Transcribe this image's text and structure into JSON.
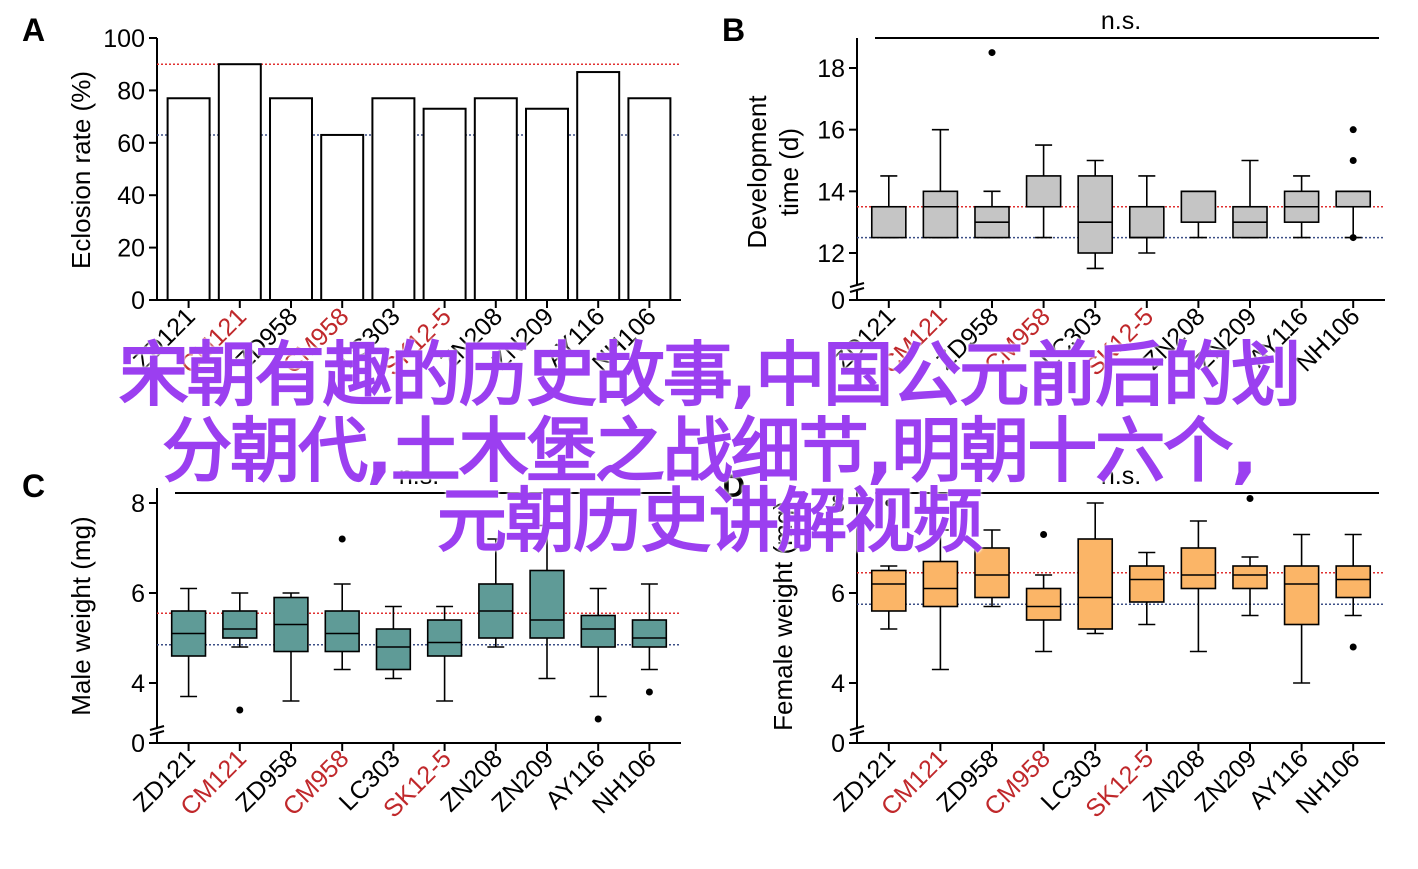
{
  "colors": {
    "control_red": "#c0282b",
    "ref_red": "#e03030",
    "ref_blue": "#3c4f86",
    "bar_fill": "#ffffff",
    "box_gray": "#c5c5c5",
    "box_teal": "#5f9b97",
    "box_orange": "#fbb567",
    "watermark": "#9b3ff0"
  },
  "watermark": {
    "line1": "宋朝有趣的历史故事,中国公元前后的划",
    "line2": "分朝代,土木堡之战细节,明朝十六个,",
    "line3": "元朝历史讲解视频"
  },
  "chart_data": [
    {
      "panel": "A",
      "type": "bar",
      "ylabel": "Eclosion rate (%)",
      "ylim": [
        0,
        100
      ],
      "yticks": [
        "0",
        "20",
        "40",
        "60",
        "80",
        "100"
      ],
      "categories": [
        "ZD121",
        "CM121",
        "ZD958",
        "CM958",
        "LC303",
        "SK12-5",
        "ZN208",
        "ZN209",
        "AY116",
        "NH106"
      ],
      "control_categories": [
        "CM121",
        "CM958",
        "SK12-5"
      ],
      "values": [
        77,
        90,
        77,
        63,
        77,
        73,
        77,
        73,
        87,
        77
      ],
      "ref_lines": {
        "red": 90,
        "blue": 63
      }
    },
    {
      "panel": "B",
      "type": "box",
      "ylabel": "Development time (d)",
      "ylim": [
        0,
        19
      ],
      "axis_break": true,
      "yticks": [
        "0",
        "12",
        "14",
        "16",
        "18"
      ],
      "significance": "n.s.",
      "categories": [
        "ZD121",
        "CM121",
        "ZD958",
        "CM958",
        "LC303",
        "SK12-5",
        "ZN208",
        "ZN209",
        "AY116",
        "NH106"
      ],
      "control_categories": [
        "CM121",
        "CM958",
        "SK12-5"
      ],
      "boxes": [
        {
          "min": 12.5,
          "q1": 12.5,
          "median": 13.5,
          "q3": 13.5,
          "max": 14.5,
          "outliers": []
        },
        {
          "min": 12.5,
          "q1": 12.5,
          "median": 13.5,
          "q3": 14.0,
          "max": 16.0,
          "outliers": []
        },
        {
          "min": 12.5,
          "q1": 12.5,
          "median": 13.0,
          "q3": 13.5,
          "max": 14.0,
          "outliers": [
            18.5
          ]
        },
        {
          "min": 12.5,
          "q1": 13.5,
          "median": 13.5,
          "q3": 14.5,
          "max": 15.5,
          "outliers": []
        },
        {
          "min": 11.5,
          "q1": 12.0,
          "median": 13.0,
          "q3": 14.5,
          "max": 15.0,
          "outliers": []
        },
        {
          "min": 12.0,
          "q1": 12.5,
          "median": 12.5,
          "q3": 13.5,
          "max": 14.5,
          "outliers": []
        },
        {
          "min": 12.5,
          "q1": 13.0,
          "median": 14.0,
          "q3": 14.0,
          "max": 14.0,
          "outliers": []
        },
        {
          "min": 12.5,
          "q1": 12.5,
          "median": 13.0,
          "q3": 13.5,
          "max": 15.0,
          "outliers": []
        },
        {
          "min": 12.5,
          "q1": 13.0,
          "median": 13.5,
          "q3": 14.0,
          "max": 14.5,
          "outliers": []
        },
        {
          "min": 12.5,
          "q1": 13.5,
          "median": 14.0,
          "q3": 14.0,
          "max": 14.0,
          "outliers": [
            16.0,
            15.0,
            12.5
          ]
        }
      ],
      "ref_lines": {
        "red": 13.5,
        "blue": 12.5
      }
    },
    {
      "panel": "C",
      "type": "box",
      "ylabel": "Male weight (mg)",
      "ylim": [
        0,
        8.5
      ],
      "axis_break": true,
      "yticks": [
        "0",
        "4",
        "6",
        "8"
      ],
      "significance": "n.s.",
      "categories": [
        "ZD121",
        "CM121",
        "ZD958",
        "CM958",
        "LC303",
        "SK12-5",
        "ZN208",
        "ZN209",
        "AY116",
        "NH106"
      ],
      "control_categories": [
        "CM121",
        "CM958",
        "SK12-5"
      ],
      "boxes": [
        {
          "min": 3.7,
          "q1": 4.6,
          "median": 5.1,
          "q3": 5.6,
          "max": 6.1,
          "outliers": []
        },
        {
          "min": 4.8,
          "q1": 5.0,
          "median": 5.2,
          "q3": 5.6,
          "max": 6.0,
          "outliers": [
            3.4
          ]
        },
        {
          "min": 3.6,
          "q1": 4.7,
          "median": 5.3,
          "q3": 5.9,
          "max": 6.0,
          "outliers": []
        },
        {
          "min": 4.3,
          "q1": 4.7,
          "median": 5.1,
          "q3": 5.6,
          "max": 6.2,
          "outliers": [
            7.2
          ]
        },
        {
          "min": 4.1,
          "q1": 4.3,
          "median": 4.8,
          "q3": 5.2,
          "max": 5.7,
          "outliers": []
        },
        {
          "min": 3.6,
          "q1": 4.6,
          "median": 4.9,
          "q3": 5.4,
          "max": 5.7,
          "outliers": []
        },
        {
          "min": 4.8,
          "q1": 5.0,
          "median": 5.6,
          "q3": 6.2,
          "max": 7.2,
          "outliers": []
        },
        {
          "min": 4.1,
          "q1": 5.0,
          "median": 5.4,
          "q3": 6.5,
          "max": 7.5,
          "outliers": []
        },
        {
          "min": 3.7,
          "q1": 4.8,
          "median": 5.2,
          "q3": 5.5,
          "max": 6.1,
          "outliers": [
            3.2
          ]
        },
        {
          "min": 4.3,
          "q1": 4.8,
          "median": 5.0,
          "q3": 5.4,
          "max": 6.2,
          "outliers": [
            3.8
          ]
        }
      ],
      "ref_lines": {
        "red": 5.55,
        "blue": 4.85
      }
    },
    {
      "panel": "D",
      "type": "box",
      "ylabel": "Female weight (mg)",
      "ylim": [
        0,
        8.5
      ],
      "axis_break": true,
      "yticks": [
        "0",
        "4",
        "6",
        "8"
      ],
      "significance": "n.s.",
      "categories": [
        "ZD121",
        "CM121",
        "ZD958",
        "CM958",
        "LC303",
        "SK12-5",
        "ZN208",
        "ZN209",
        "AY116",
        "NH106"
      ],
      "control_categories": [
        "CM121",
        "CM958",
        "SK12-5"
      ],
      "boxes": [
        {
          "min": 5.2,
          "q1": 5.6,
          "median": 6.2,
          "q3": 6.5,
          "max": 6.6,
          "outliers": [
            8.0
          ]
        },
        {
          "min": 4.3,
          "q1": 5.7,
          "median": 6.1,
          "q3": 6.7,
          "max": 7.4,
          "outliers": []
        },
        {
          "min": 5.7,
          "q1": 5.9,
          "median": 6.4,
          "q3": 7.0,
          "max": 7.4,
          "outliers": []
        },
        {
          "min": 4.7,
          "q1": 5.4,
          "median": 5.7,
          "q3": 6.1,
          "max": 6.4,
          "outliers": [
            7.3
          ]
        },
        {
          "min": 5.1,
          "q1": 5.2,
          "median": 5.9,
          "q3": 7.2,
          "max": 8.0,
          "outliers": []
        },
        {
          "min": 5.3,
          "q1": 5.8,
          "median": 6.3,
          "q3": 6.6,
          "max": 6.9,
          "outliers": []
        },
        {
          "min": 4.7,
          "q1": 6.1,
          "median": 6.4,
          "q3": 7.0,
          "max": 7.6,
          "outliers": []
        },
        {
          "min": 5.5,
          "q1": 6.1,
          "median": 6.4,
          "q3": 6.6,
          "max": 6.8,
          "outliers": [
            8.1
          ]
        },
        {
          "min": 4.0,
          "q1": 5.3,
          "median": 6.2,
          "q3": 6.6,
          "max": 7.3,
          "outliers": []
        },
        {
          "min": 5.5,
          "q1": 5.9,
          "median": 6.3,
          "q3": 6.6,
          "max": 7.3,
          "outliers": [
            4.8
          ]
        }
      ],
      "ref_lines": {
        "red": 6.45,
        "blue": 5.75
      }
    }
  ]
}
